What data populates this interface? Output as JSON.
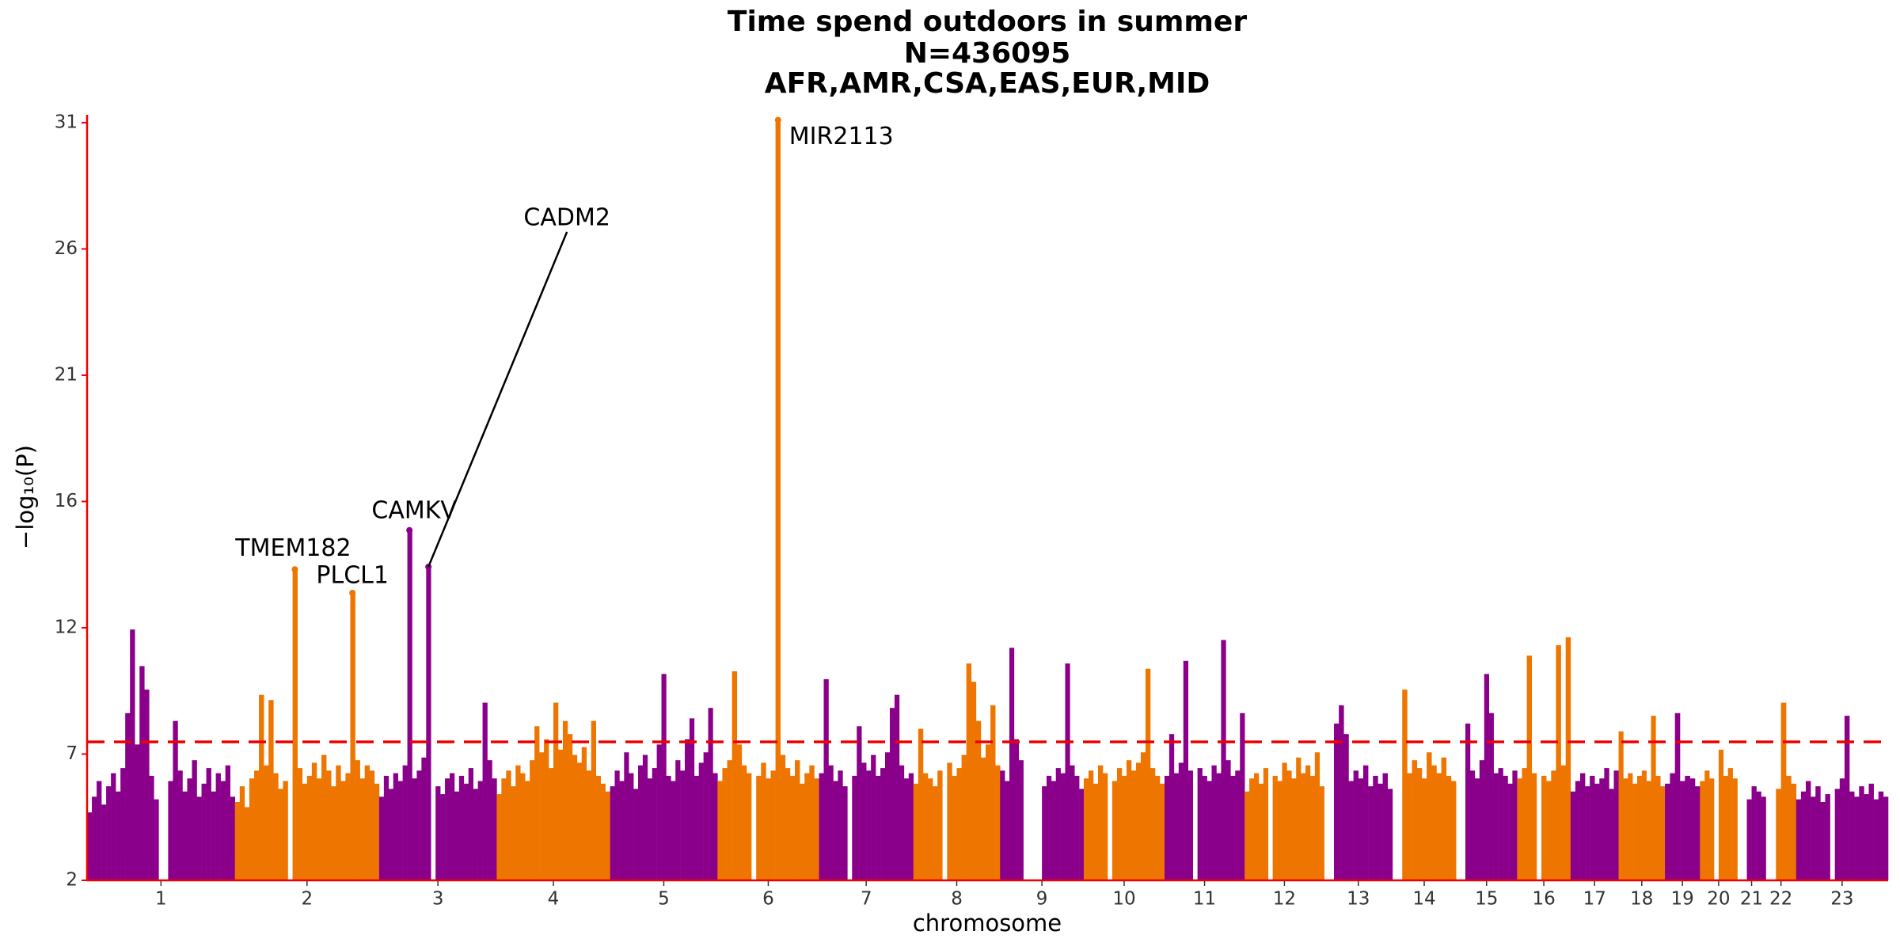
{
  "chart_data": {
    "type": "manhattan",
    "title": [
      "Time spend outdoors in summer",
      "N=436095",
      "AFR,AMR,CSA,EAS,EUR,MID"
    ],
    "xlabel": "chromosome",
    "ylabel": "−log₁₀(P)",
    "ylim": [
      2,
      31.3
    ],
    "yticks": [
      2,
      {
        "value": 6.833,
        "label": "7"
      },
      {
        "value": 11.667,
        "label": "12"
      },
      {
        "value": 16.5,
        "label": "16"
      },
      {
        "value": 21.333,
        "label": "21"
      },
      {
        "value": 26.167,
        "label": "26"
      },
      31
    ],
    "threshold": 7.3,
    "threshold_color": "#ee0000",
    "axis_color": "#ee0000",
    "colors": [
      "#8b008b",
      "#ee7600"
    ],
    "chromosomes": [
      {
        "name": "1",
        "length": 249,
        "values": [
          4.6,
          5.2,
          5.8,
          4.9,
          5.6,
          6.1,
          5.4,
          6.3,
          8.4,
          11.6,
          7.2,
          10.2,
          9.3,
          6.0,
          5.1,
          null,
          null,
          5.8,
          8.1,
          6.2,
          5.4,
          5.9,
          6.6,
          5.2,
          5.7,
          6.3,
          5.4,
          6.1,
          5.8,
          6.4,
          5.2
        ]
      },
      {
        "name": "2",
        "length": 243,
        "values": [
          5.0,
          5.6,
          4.8,
          5.9,
          6.2,
          9.1,
          6.4,
          8.9,
          6.1,
          5.5,
          5.8,
          null,
          13.9,
          6.3,
          5.7,
          6.0,
          6.5,
          5.9,
          6.8,
          6.2,
          5.6,
          6.4,
          5.8,
          6.1,
          13.0,
          6.6,
          5.9,
          6.4,
          6.2,
          5.7
        ]
      },
      {
        "name": "3",
        "length": 198,
        "values": [
          5.2,
          6.0,
          5.5,
          6.1,
          5.8,
          6.4,
          15.4,
          5.9,
          6.2,
          6.7,
          14.0,
          null,
          5.6,
          5.3,
          5.9,
          6.1,
          5.4,
          6.0,
          5.7,
          6.3,
          5.5,
          5.8,
          8.8,
          6.6,
          5.9
        ]
      },
      {
        "name": "4",
        "length": 191,
        "values": [
          5.3,
          5.9,
          6.2,
          5.6,
          6.4,
          6.1,
          5.8,
          6.6,
          7.9,
          6.9,
          7.4,
          6.3,
          8.8,
          7.0,
          8.1,
          7.6,
          6.8,
          6.5,
          7.1,
          6.2,
          8.1,
          6.0,
          5.7,
          5.4
        ]
      },
      {
        "name": "5",
        "length": 181,
        "values": [
          5.6,
          6.2,
          5.8,
          6.9,
          6.1,
          5.5,
          6.4,
          6.8,
          5.9,
          6.3,
          7.2,
          9.9,
          6.0,
          5.8,
          6.6,
          6.2,
          7.4,
          8.2,
          6.0,
          6.5,
          6.9,
          8.6,
          6.1
        ]
      },
      {
        "name": "6",
        "length": 171,
        "values": [
          5.8,
          6.3,
          6.6,
          10.0,
          7.2,
          6.4,
          6.1,
          null,
          6.0,
          6.5,
          5.9,
          6.2,
          31.1,
          6.8,
          6.3,
          6.0,
          6.6,
          5.7,
          6.1,
          6.4,
          5.9
        ]
      },
      {
        "name": "7",
        "length": 159,
        "values": [
          6.1,
          9.7,
          6.4,
          5.8,
          6.2,
          5.6,
          null,
          6.0,
          7.9,
          6.5,
          6.2,
          6.8,
          6.0,
          6.3,
          6.9,
          8.6,
          9.1,
          6.4,
          5.9,
          6.1
        ]
      },
      {
        "name": "8",
        "length": 146,
        "values": [
          5.7,
          7.8,
          6.1,
          5.9,
          5.6,
          6.2,
          null,
          6.5,
          6.0,
          6.3,
          6.8,
          10.3,
          9.6,
          8.1,
          6.7,
          7.2,
          8.7,
          6.4
        ]
      },
      {
        "name": "9",
        "length": 141,
        "values": [
          6.2,
          5.8,
          10.9,
          7.4,
          6.6,
          null,
          null,
          null,
          null,
          5.6,
          6.0,
          5.8,
          6.3,
          6.1,
          10.3,
          6.4,
          6.0,
          5.5
        ]
      },
      {
        "name": "10",
        "length": 136,
        "values": [
          5.9,
          6.2,
          5.7,
          6.4,
          6.1,
          null,
          5.8,
          6.3,
          6.0,
          6.6,
          6.2,
          6.5,
          6.9,
          10.1,
          6.3,
          6.0,
          5.7
        ]
      },
      {
        "name": "11",
        "length": 135,
        "values": [
          6.0,
          7.6,
          6.1,
          6.5,
          10.4,
          6.2,
          null,
          6.3,
          6.0,
          5.8,
          6.4,
          6.1,
          11.2,
          6.6,
          6.0,
          6.2,
          8.4
        ]
      },
      {
        "name": "12",
        "length": 134,
        "values": [
          5.4,
          5.9,
          6.1,
          5.7,
          6.3,
          null,
          6.0,
          5.8,
          6.5,
          6.2,
          5.9,
          6.7,
          6.1,
          6.4,
          6.0,
          6.9,
          5.6
        ]
      },
      {
        "name": "13",
        "length": 115,
        "values": [
          null,
          null,
          8.0,
          8.7,
          7.6,
          5.8,
          6.2,
          5.9,
          6.4,
          5.6,
          6.0,
          5.7,
          6.1,
          5.5
        ]
      },
      {
        "name": "14",
        "length": 107,
        "values": [
          null,
          null,
          9.3,
          6.1,
          6.6,
          6.3,
          5.9,
          6.9,
          6.4,
          6.1,
          6.7,
          6.0,
          5.8
        ]
      },
      {
        "name": "15",
        "length": 103,
        "values": [
          null,
          null,
          8.0,
          6.2,
          5.9,
          6.6,
          9.9,
          8.4,
          6.1,
          6.3,
          6.0,
          5.7,
          6.2
        ]
      },
      {
        "name": "16",
        "length": 90,
        "values": [
          5.9,
          6.3,
          10.6,
          6.1,
          null,
          6.0,
          5.8,
          6.2,
          11.0,
          6.4,
          11.3
        ]
      },
      {
        "name": "17",
        "length": 81,
        "values": [
          5.4,
          5.8,
          6.1,
          5.6,
          6.0,
          5.7,
          5.9,
          6.3,
          5.5,
          6.2
        ]
      },
      {
        "name": "18",
        "length": 78,
        "values": [
          7.7,
          5.9,
          6.1,
          5.7,
          6.0,
          6.2,
          5.8,
          8.3,
          6.0,
          5.6
        ]
      },
      {
        "name": "19",
        "length": 59,
        "values": [
          5.7,
          6.1,
          8.4,
          5.8,
          6.0,
          5.9,
          5.6
        ]
      },
      {
        "name": "20",
        "length": 63,
        "values": [
          5.8,
          6.2,
          5.9,
          null,
          7.0,
          6.0,
          6.3,
          5.9
        ]
      },
      {
        "name": "21",
        "length": 48,
        "values": [
          null,
          null,
          5.1,
          5.6,
          5.4,
          5.2
        ]
      },
      {
        "name": "22",
        "length": 51,
        "values": [
          null,
          null,
          5.5,
          8.8,
          6.0,
          5.7
        ]
      },
      {
        "name": "23",
        "length": 155,
        "values": [
          5.1,
          5.4,
          5.8,
          5.2,
          5.6,
          5.0,
          5.3,
          null,
          5.5,
          5.9,
          8.3,
          5.4,
          5.2,
          5.6,
          5.3,
          5.7,
          5.1,
          5.4,
          5.2
        ]
      }
    ],
    "annotations": [
      {
        "text": "MIR2113",
        "chromosome": "6",
        "pos": 102,
        "value": 31.1
      },
      {
        "text": "CADM2",
        "chromosome": "3",
        "pos": 83,
        "value": 14.0
      },
      {
        "text": "CAMKV",
        "chromosome": "3",
        "pos": 51,
        "value": 15.4
      },
      {
        "text": "TMEM182",
        "chromosome": "2",
        "pos": 101,
        "value": 13.9
      },
      {
        "text": "PLCL1",
        "chromosome": "2",
        "pos": 198,
        "value": 13.0
      }
    ]
  }
}
